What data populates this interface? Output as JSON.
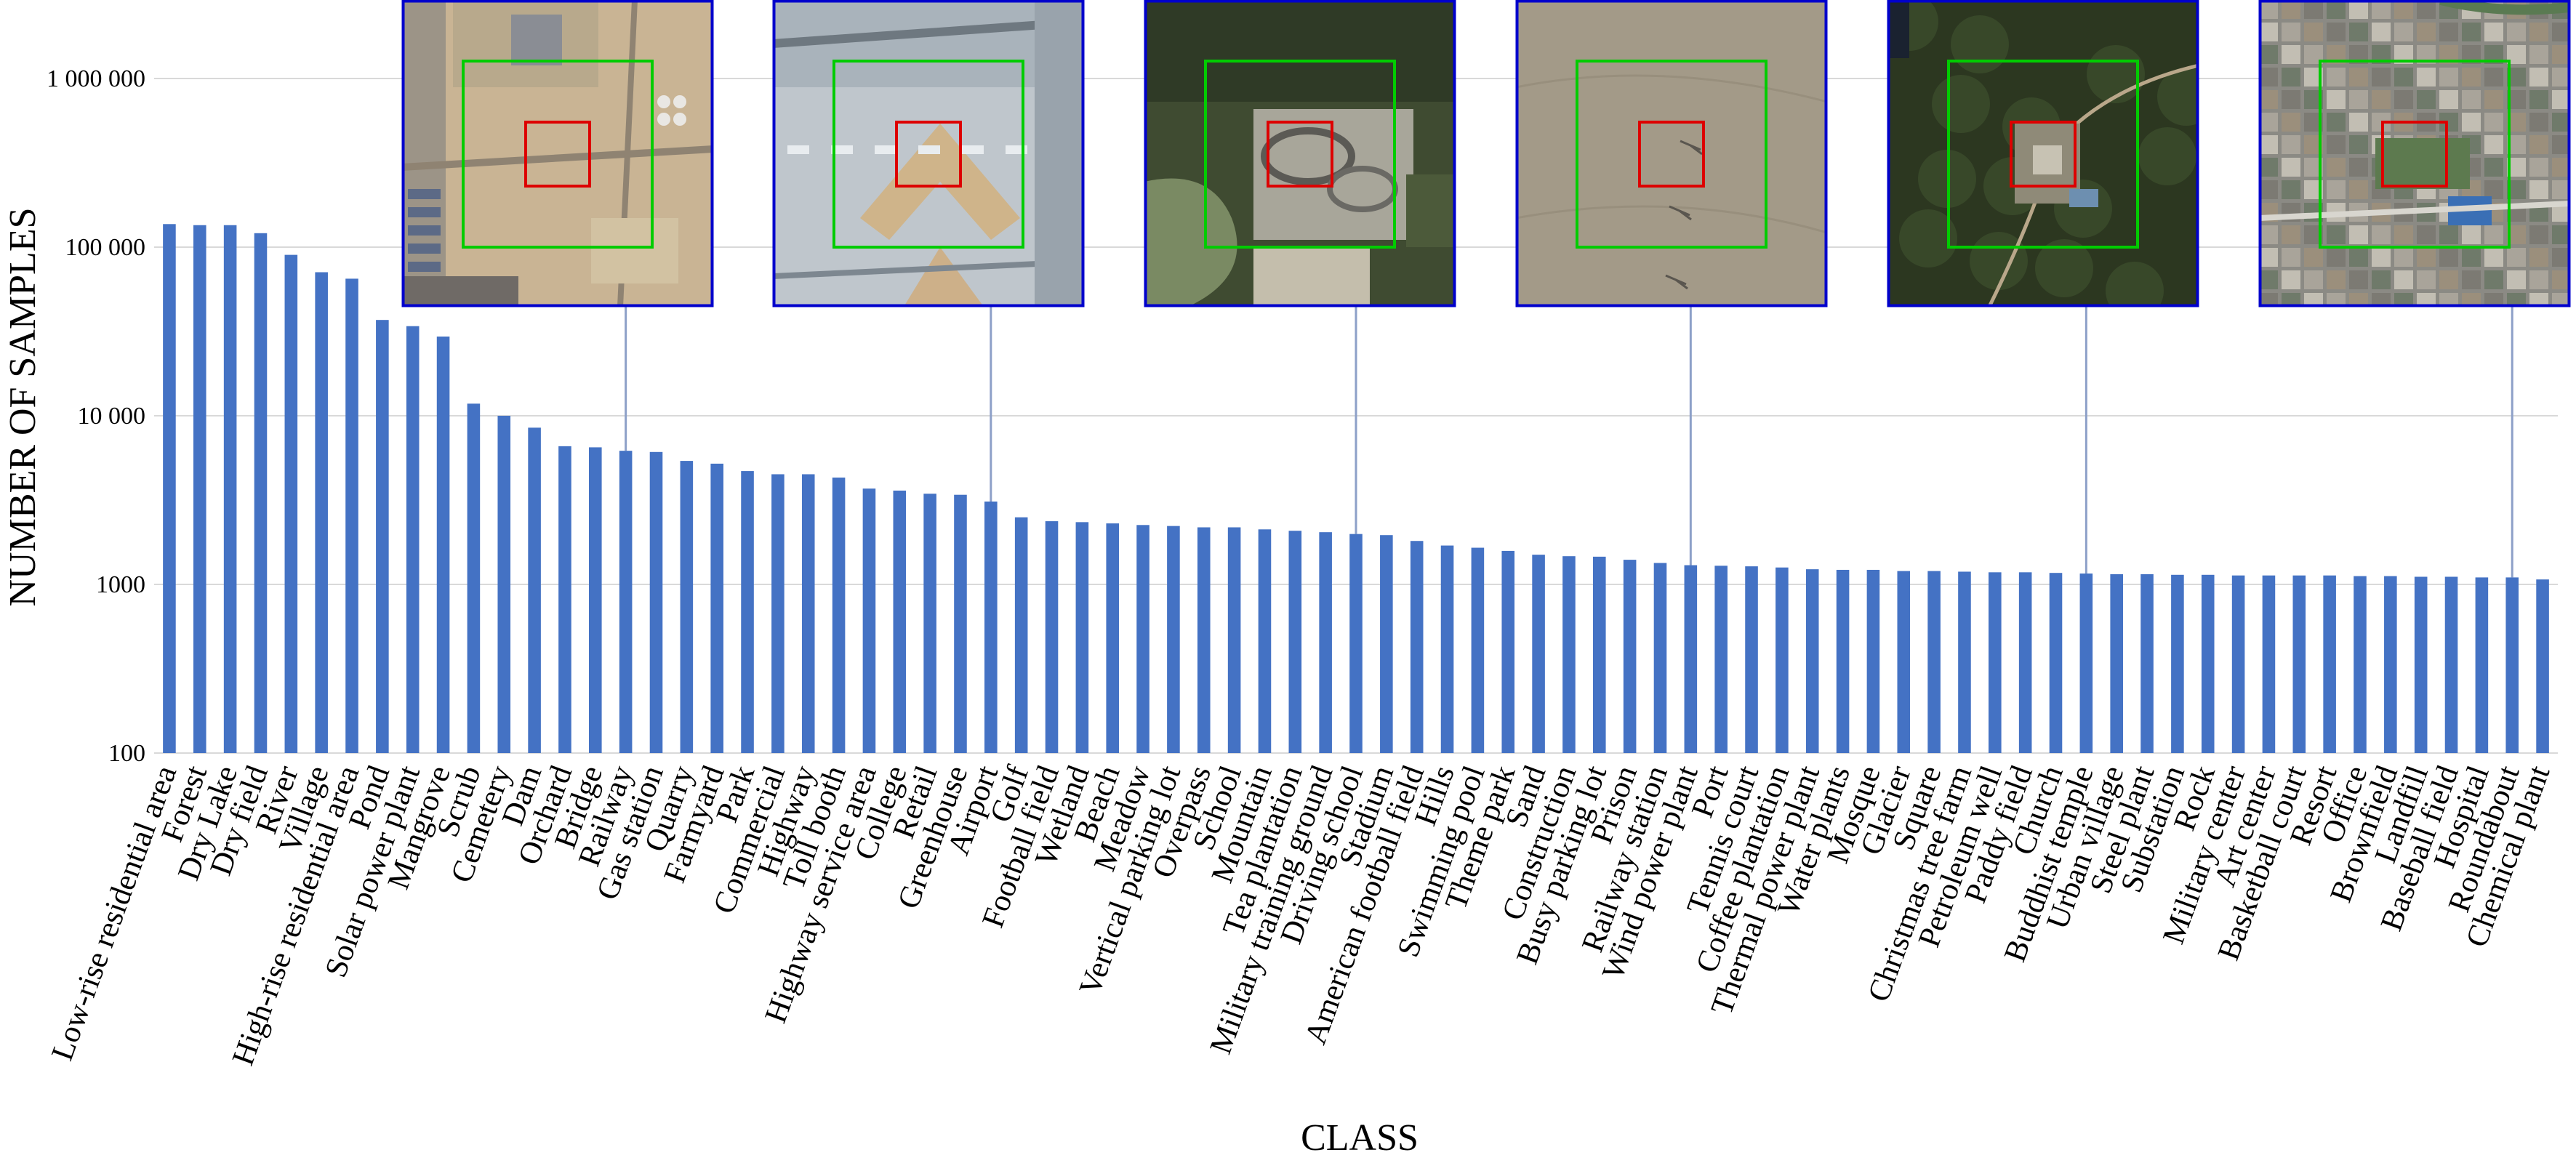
{
  "chart_data": {
    "type": "bar",
    "title": "",
    "xlabel": "CLASS",
    "ylabel": "NUMBER OF SAMPLES",
    "yscale": "log",
    "ylim": [
      100,
      1000000
    ],
    "yticks": [
      100,
      1000,
      10000,
      100000,
      1000000
    ],
    "ytick_labels": [
      "100",
      "1000",
      "10 000",
      "100 000",
      "1 000 000"
    ],
    "grid": true,
    "legend": "none",
    "bar_color": "#4472C4",
    "categories": [
      "Low-rise residential area",
      "Forest",
      "Dry Lake",
      "Dry field",
      "River",
      "Village",
      "High-rise residential area",
      "Pond",
      "Solar power plant",
      "Mangrove",
      "Scrub",
      "Cemetery",
      "Dam",
      "Orchard",
      "Bridge",
      "Railway",
      "Gas station",
      "Quarry",
      "Farmyard",
      "Park",
      "Commercial",
      "Highway",
      "Toll booth",
      "Highway service area",
      "College",
      "Retail",
      "Greenhouse",
      "Airport",
      "Golf",
      "Football field",
      "Wetland",
      "Beach",
      "Meadow",
      "Vertical parking lot",
      "Overpass",
      "School",
      "Mountain",
      "Tea plantation",
      "Military training ground",
      "Driving school",
      "Stadium",
      "American football field",
      "Hills",
      "Swimming pool",
      "Theme park",
      "Sand",
      "Construction",
      "Busy parking lot",
      "Prison",
      "Railway station",
      "Wind power plant",
      "Port",
      "Tennis court",
      "Coffee plantation",
      "Thermal power plant",
      "Water plants",
      "Mosque",
      "Glacier",
      "Square",
      "Christmas tree farm",
      "Petroleum well",
      "Paddy field",
      "Church",
      "Buddhist temple",
      "Urban village",
      "Steel plant",
      "Substation",
      "Rock",
      "Military center",
      "Art center",
      "Basketball court",
      "Resort",
      "Office",
      "Brownfield",
      "Landfill",
      "Baseball field",
      "Hospital",
      "Roundabout",
      "Chemical plant"
    ],
    "values": [
      137000,
      135000,
      135000,
      121000,
      90000,
      71000,
      65000,
      37000,
      34000,
      29500,
      11800,
      10000,
      8500,
      6600,
      6500,
      6200,
      6100,
      5400,
      5200,
      4700,
      4500,
      4500,
      4300,
      3700,
      3600,
      3450,
      3400,
      3100,
      2500,
      2370,
      2340,
      2300,
      2250,
      2220,
      2180,
      2180,
      2120,
      2080,
      2040,
      1990,
      1960,
      1810,
      1700,
      1650,
      1580,
      1500,
      1470,
      1460,
      1400,
      1340,
      1300,
      1290,
      1280,
      1260,
      1230,
      1220,
      1220,
      1200,
      1200,
      1190,
      1180,
      1180,
      1170,
      1160,
      1150,
      1150,
      1140,
      1140,
      1130,
      1130,
      1130,
      1130,
      1120,
      1120,
      1110,
      1110,
      1100,
      1100,
      1070
    ],
    "insets": [
      {
        "image": "aerial-desert-construction",
        "linked_class": "Railway"
      },
      {
        "image": "aerial-airport-terminal",
        "linked_class": "Airport"
      },
      {
        "image": "aerial-driving-school-track",
        "linked_class": "Driving school"
      },
      {
        "image": "aerial-sand-wind-turbines",
        "linked_class": "Wind power plant"
      },
      {
        "image": "aerial-forest-temple",
        "linked_class": "Buddhist temple"
      },
      {
        "image": "aerial-dense-town",
        "linked_class": "Roundabout"
      }
    ],
    "inset_frame_color": "#0000CC",
    "outer_box_color": "#00CC00",
    "inner_box_color": "#DD0000"
  }
}
